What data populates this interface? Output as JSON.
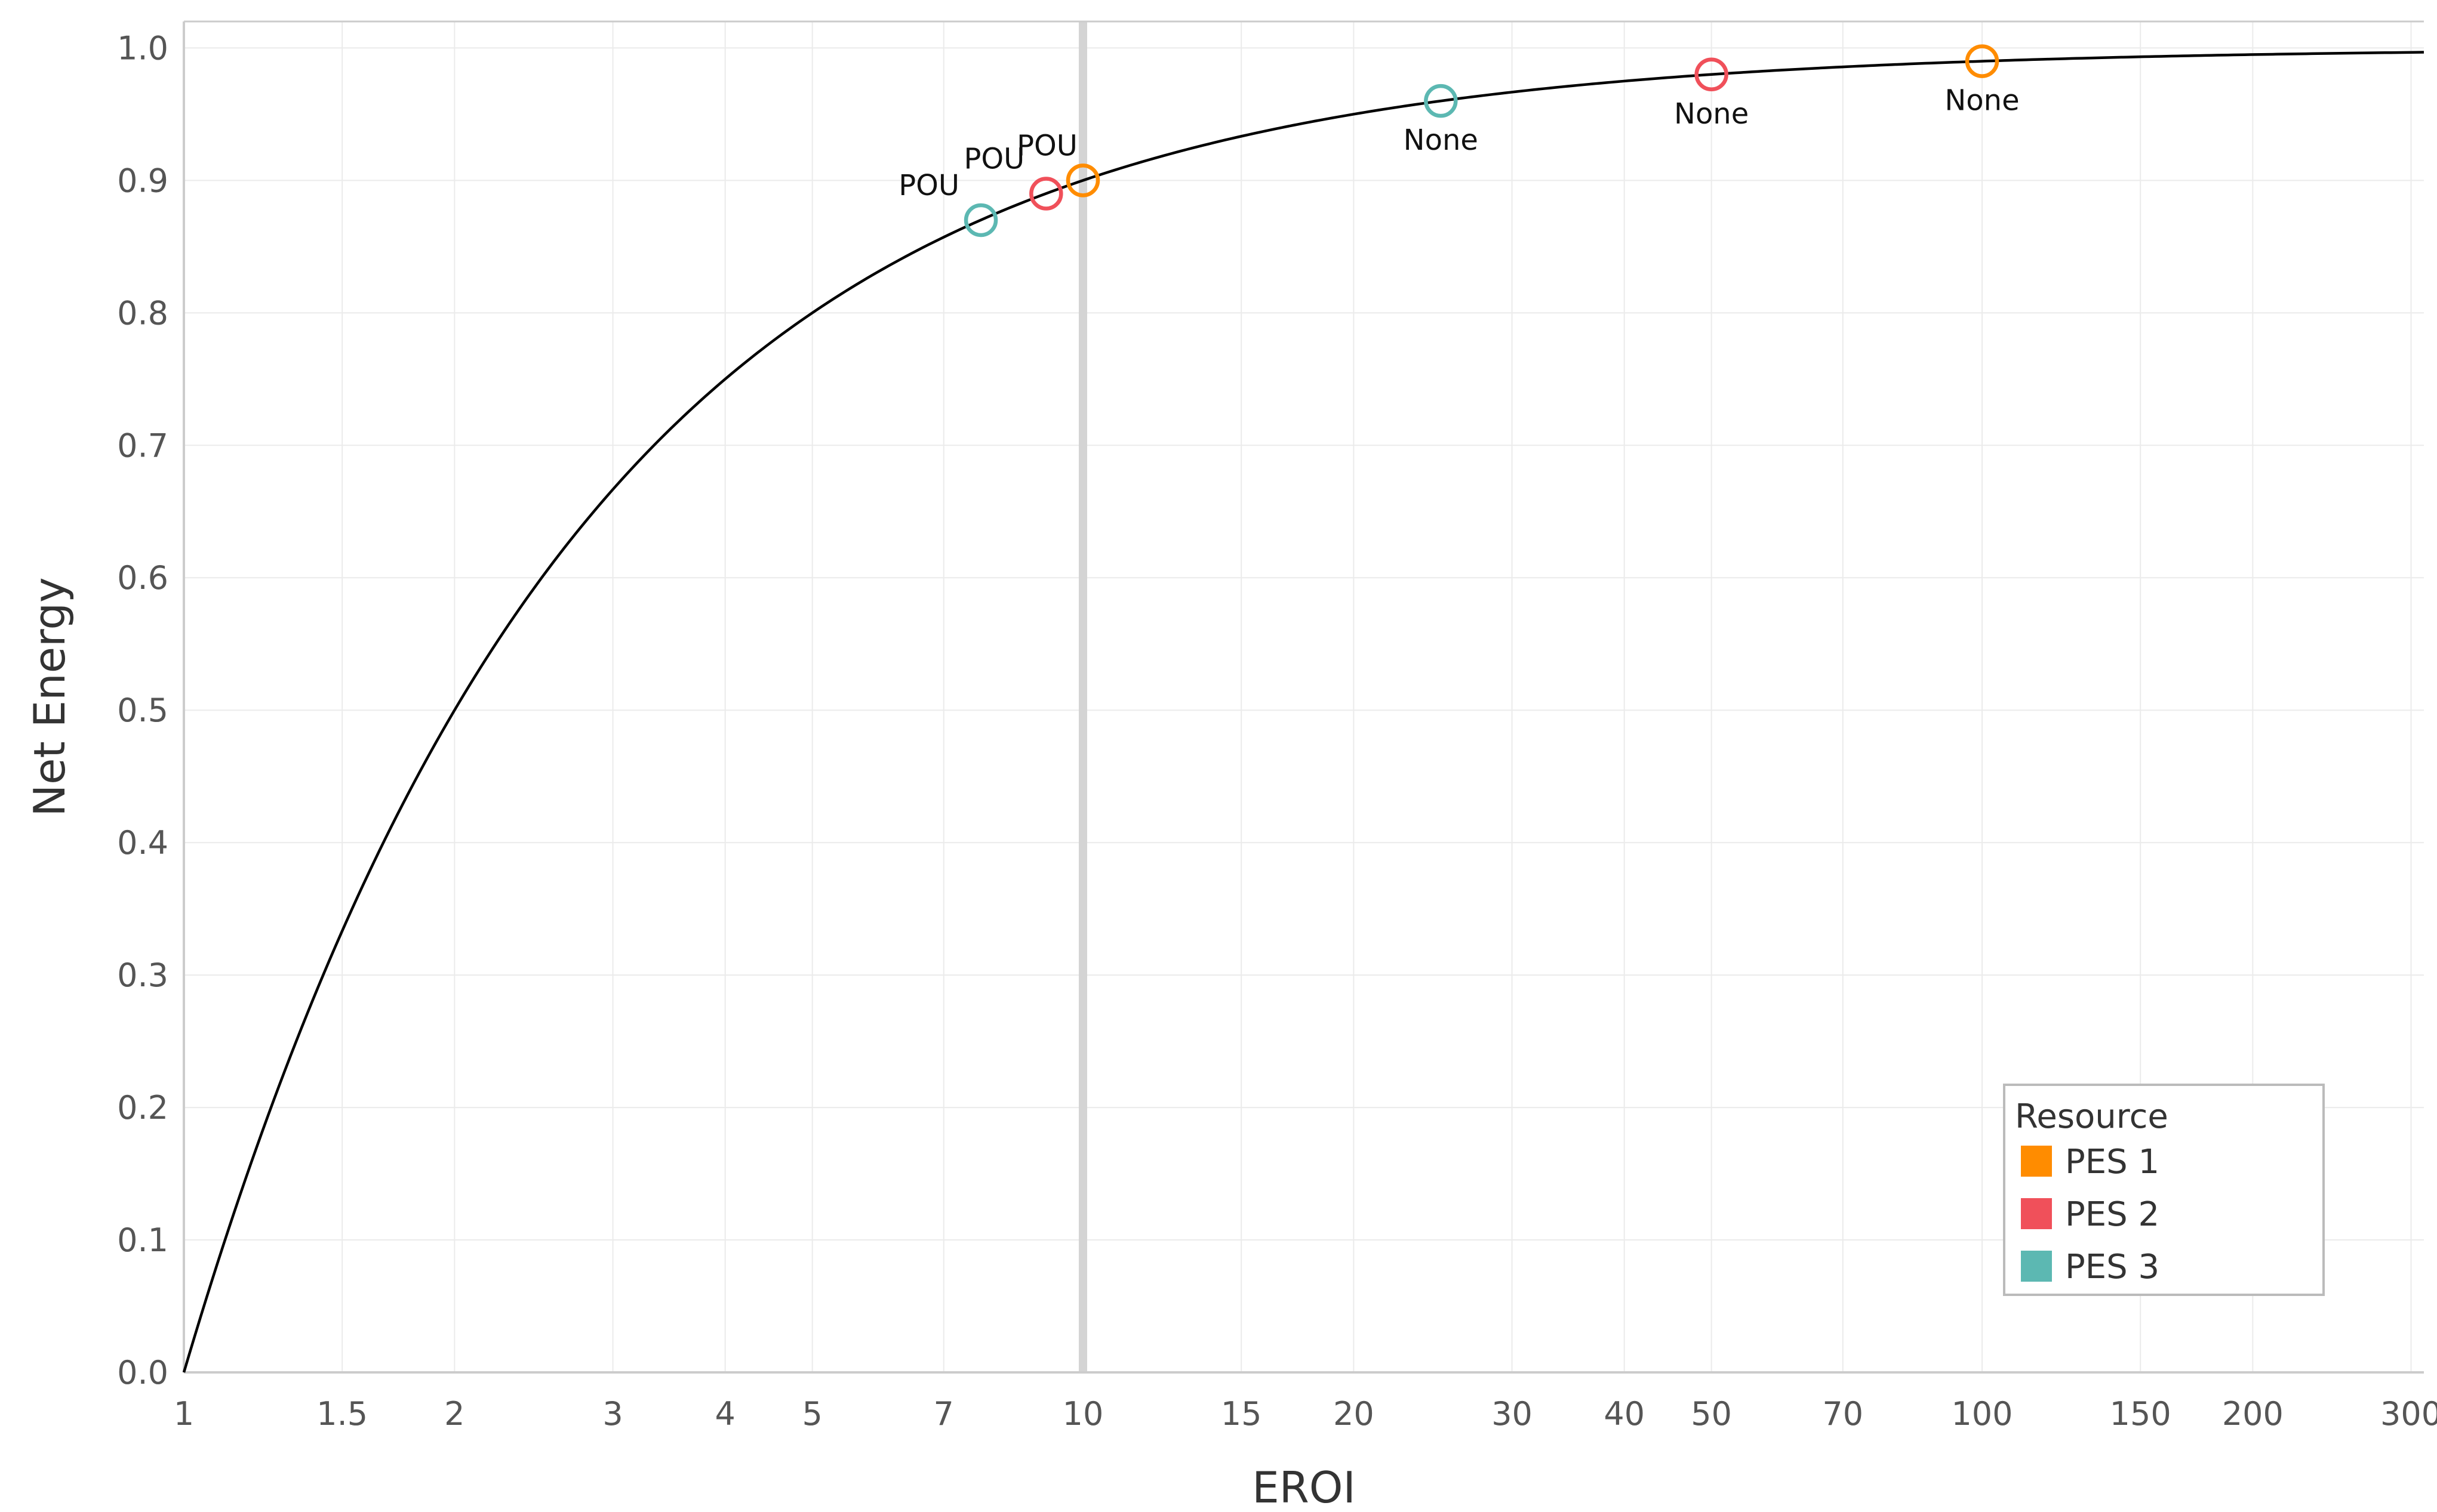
{
  "chart_data": {
    "type": "scatter",
    "xlabel": "EROI",
    "ylabel": "Net Energy",
    "x_scale": "log",
    "xlim": [
      1,
      310
    ],
    "ylim": [
      0,
      1.02
    ],
    "x_ticks": [
      1,
      1.5,
      2,
      3,
      4,
      5,
      7,
      10,
      15,
      20,
      30,
      40,
      50,
      70,
      100,
      150,
      200,
      300
    ],
    "x_tick_labels": [
      "1",
      "1.5",
      "2",
      "3",
      "4",
      "5",
      "7",
      "10",
      "15",
      "20",
      "30",
      "40",
      "50",
      "70",
      "100",
      "150",
      "200",
      "300"
    ],
    "y_ticks": [
      0,
      0.1,
      0.2,
      0.3,
      0.4,
      0.5,
      0.6,
      0.7,
      0.8,
      0.9,
      1.0
    ],
    "y_tick_labels": [
      "0.0",
      "0.1",
      "0.2",
      "0.3",
      "0.4",
      "0.5",
      "0.6",
      "0.7",
      "0.8",
      "0.9",
      "1.0"
    ],
    "grid": true,
    "reference_line_x": 10,
    "curve": {
      "description": "net energy = 1 - 1/EROI",
      "color": "#000000"
    },
    "series": [
      {
        "name": "PES 1",
        "color": "#FF8C00",
        "points": [
          {
            "x": 10,
            "y": 0.9,
            "label": "POU",
            "label_pos": "above"
          },
          {
            "x": 100,
            "y": 0.99,
            "label": "None",
            "label_pos": "below"
          }
        ]
      },
      {
        "name": "PES 2",
        "color": "#F0505A",
        "points": [
          {
            "x": 9.1,
            "y": 0.89,
            "label": "POU",
            "label_pos": "above-left"
          },
          {
            "x": 50,
            "y": 0.98,
            "label": "None",
            "label_pos": "below"
          }
        ]
      },
      {
        "name": "PES 3",
        "color": "#5CB8B2",
        "points": [
          {
            "x": 7.7,
            "y": 0.87,
            "label": "POU",
            "label_pos": "above-left"
          },
          {
            "x": 25,
            "y": 0.96,
            "label": "None",
            "label_pos": "below"
          }
        ]
      }
    ],
    "legend": {
      "title": "Resource",
      "position": "bottom-right",
      "items": [
        "PES 1",
        "PES 2",
        "PES 3"
      ]
    }
  }
}
